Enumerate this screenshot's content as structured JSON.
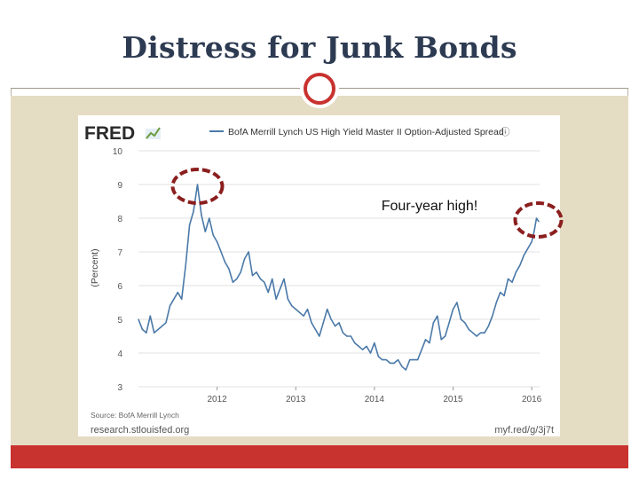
{
  "slide": {
    "title": "Distress for Junk Bonds",
    "annotation": "Four-year high!"
  },
  "colors": {
    "title": "#2d3b52",
    "accent_red": "#c8322f",
    "band": "#e5dcc4",
    "series": "#4a79a8",
    "highlight_circle": "#8b1e1e"
  },
  "chart_data": {
    "type": "line",
    "source_brand": "FRED",
    "series": [
      {
        "name": "BofA Merrill Lynch US High Yield Master II Option-Adjusted Spread",
        "x": [
          2011.0,
          2011.05,
          2011.1,
          2011.15,
          2011.2,
          2011.25,
          2011.3,
          2011.35,
          2011.4,
          2011.45,
          2011.5,
          2011.55,
          2011.6,
          2011.65,
          2011.7,
          2011.75,
          2011.8,
          2011.85,
          2011.9,
          2011.95,
          2012.0,
          2012.05,
          2012.1,
          2012.15,
          2012.2,
          2012.25,
          2012.3,
          2012.35,
          2012.4,
          2012.45,
          2012.5,
          2012.55,
          2012.6,
          2012.65,
          2012.7,
          2012.75,
          2012.8,
          2012.85,
          2012.9,
          2012.95,
          2013.0,
          2013.05,
          2013.1,
          2013.15,
          2013.2,
          2013.25,
          2013.3,
          2013.35,
          2013.4,
          2013.45,
          2013.5,
          2013.55,
          2013.6,
          2013.65,
          2013.7,
          2013.75,
          2013.8,
          2013.85,
          2013.9,
          2013.95,
          2014.0,
          2014.05,
          2014.1,
          2014.15,
          2014.2,
          2014.25,
          2014.3,
          2014.35,
          2014.4,
          2014.45,
          2014.5,
          2014.55,
          2014.6,
          2014.65,
          2014.7,
          2014.75,
          2014.8,
          2014.85,
          2014.9,
          2014.95,
          2015.0,
          2015.05,
          2015.1,
          2015.15,
          2015.2,
          2015.25,
          2015.3,
          2015.35,
          2015.4,
          2015.45,
          2015.5,
          2015.55,
          2015.6,
          2015.65,
          2015.7,
          2015.75,
          2015.8,
          2015.85,
          2015.9,
          2015.95,
          2016.0,
          2016.03,
          2016.06,
          2016.09
        ],
        "y": [
          5.0,
          4.7,
          4.6,
          5.1,
          4.6,
          4.7,
          4.8,
          4.9,
          5.4,
          5.6,
          5.8,
          5.6,
          6.6,
          7.8,
          8.2,
          9.0,
          8.1,
          7.6,
          8.0,
          7.5,
          7.3,
          7.0,
          6.7,
          6.5,
          6.1,
          6.2,
          6.4,
          6.8,
          7.0,
          6.3,
          6.4,
          6.2,
          6.1,
          5.8,
          6.2,
          5.6,
          5.9,
          6.2,
          5.6,
          5.4,
          5.3,
          5.2,
          5.1,
          5.3,
          4.9,
          4.7,
          4.5,
          4.9,
          5.3,
          5.0,
          4.8,
          4.9,
          4.6,
          4.5,
          4.5,
          4.3,
          4.2,
          4.1,
          4.2,
          4.0,
          4.3,
          3.9,
          3.8,
          3.8,
          3.7,
          3.7,
          3.8,
          3.6,
          3.5,
          3.8,
          3.8,
          3.8,
          4.1,
          4.4,
          4.3,
          4.9,
          5.1,
          4.4,
          4.5,
          4.9,
          5.3,
          5.5,
          5.0,
          4.9,
          4.7,
          4.6,
          4.5,
          4.6,
          4.6,
          4.8,
          5.1,
          5.5,
          5.8,
          5.7,
          6.2,
          6.1,
          6.4,
          6.6,
          6.9,
          7.1,
          7.3,
          7.6,
          8.0,
          7.9
        ]
      }
    ],
    "ylabel": "(Percent)",
    "xlim": [
      2011.0,
      2016.1
    ],
    "ylim": [
      3,
      10
    ],
    "x_ticks": [
      "2012",
      "2013",
      "2014",
      "2015",
      "2016"
    ],
    "y_ticks": [
      "3",
      "4",
      "5",
      "6",
      "7",
      "8",
      "9",
      "10"
    ],
    "grid": "horizontal",
    "legend": "top",
    "source": "Source: BofA Merrill Lynch",
    "site": "research.stlouisfed.org",
    "short_url": "myf.red/g/3j7t"
  }
}
